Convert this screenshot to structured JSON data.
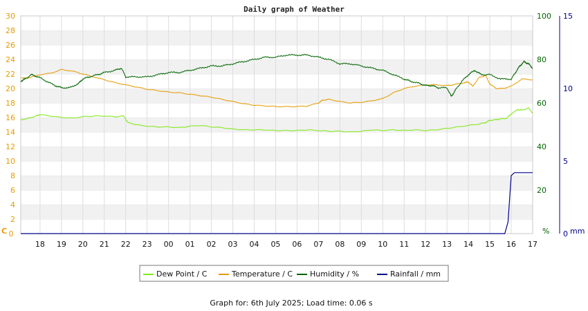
{
  "chart_data": {
    "type": "line",
    "title": "Daily graph of Weather",
    "footer": "Graph for: 6th July 2025; Load time: 0.06 s",
    "x_ticks": [
      "18",
      "19",
      "20",
      "21",
      "22",
      "23",
      "00",
      "01",
      "02",
      "03",
      "04",
      "05",
      "06",
      "07",
      "08",
      "09",
      "10",
      "11",
      "12",
      "13",
      "14",
      "15",
      "16",
      "17"
    ],
    "x_hour_range": [
      17.1,
      41.0
    ],
    "axes": {
      "left": {
        "unit": "C",
        "min": 0,
        "max": 30,
        "step": 2,
        "color": "#e69b00"
      },
      "right1": {
        "unit": "%",
        "min": 0,
        "max": 100,
        "step": 20,
        "color": "#006400"
      },
      "right2": {
        "unit": "mm",
        "min": 0,
        "max": 15,
        "step": 5,
        "color": "#00008b"
      }
    },
    "grid": true,
    "legend_position": "bottom",
    "series": [
      {
        "name": "Dew Point / C",
        "axis": "left",
        "color": "#7fe817",
        "x": [
          17.1,
          17.5,
          17.8,
          18.0,
          18.5,
          19.0,
          19.5,
          20.0,
          20.5,
          21.0,
          21.5,
          21.9,
          22.1,
          22.5,
          23.0,
          23.5,
          24.0,
          24.5,
          25.0,
          25.5,
          26.0,
          26.5,
          27.0,
          27.5,
          28.0,
          28.5,
          29.0,
          29.5,
          30.0,
          30.5,
          31.0,
          31.5,
          32.0,
          32.5,
          33.0,
          33.5,
          34.0,
          34.5,
          35.0,
          35.5,
          36.0,
          36.5,
          37.0,
          37.5,
          38.0,
          38.5,
          38.8,
          39.0,
          39.3,
          39.5,
          39.8,
          40.0,
          40.3,
          40.5,
          40.8,
          41.0
        ],
        "y": [
          15.7,
          15.9,
          16.2,
          16.4,
          16.2,
          16.0,
          15.9,
          16.1,
          16.2,
          16.2,
          16.1,
          16.2,
          15.3,
          15.0,
          14.8,
          14.7,
          14.7,
          14.6,
          14.8,
          14.9,
          14.7,
          14.6,
          14.4,
          14.3,
          14.3,
          14.3,
          14.2,
          14.2,
          14.2,
          14.3,
          14.2,
          14.1,
          14.1,
          14.0,
          14.1,
          14.3,
          14.2,
          14.3,
          14.2,
          14.3,
          14.2,
          14.3,
          14.5,
          14.7,
          14.9,
          15.1,
          15.3,
          15.6,
          15.7,
          15.8,
          15.9,
          16.5,
          17.1,
          17.0,
          17.3,
          16.6
        ]
      },
      {
        "name": "Temperature / C",
        "axis": "left",
        "color": "#e69b00",
        "x": [
          17.1,
          17.5,
          18.0,
          18.5,
          19.0,
          19.5,
          20.0,
          20.5,
          21.0,
          21.5,
          22.0,
          22.5,
          23.0,
          23.5,
          24.0,
          24.5,
          25.0,
          25.5,
          26.0,
          26.5,
          27.0,
          27.5,
          28.0,
          28.5,
          29.0,
          29.5,
          30.0,
          30.5,
          31.0,
          31.2,
          31.5,
          32.0,
          32.5,
          33.0,
          33.5,
          34.0,
          34.5,
          35.0,
          35.5,
          36.0,
          36.5,
          37.0,
          37.3,
          37.8,
          38.0,
          38.2,
          38.5,
          38.8,
          39.0,
          39.3,
          39.6,
          40.0,
          40.5,
          41.0
        ],
        "y": [
          21.4,
          21.5,
          21.9,
          22.1,
          22.6,
          22.4,
          22.0,
          21.6,
          21.2,
          20.8,
          20.5,
          20.2,
          19.9,
          19.7,
          19.5,
          19.4,
          19.2,
          19.0,
          18.8,
          18.5,
          18.2,
          17.9,
          17.7,
          17.6,
          17.5,
          17.5,
          17.5,
          17.6,
          18.0,
          18.4,
          18.5,
          18.2,
          18.0,
          18.1,
          18.3,
          18.6,
          19.4,
          20.0,
          20.3,
          20.5,
          20.5,
          20.4,
          20.5,
          20.8,
          20.9,
          20.3,
          21.5,
          21.8,
          20.6,
          20.0,
          20.0,
          20.3,
          21.3,
          21.2
        ]
      },
      {
        "name": "Humidity / %",
        "axis": "right1",
        "color": "#006400",
        "x": [
          17.1,
          17.3,
          17.6,
          17.9,
          18.3,
          18.7,
          19.0,
          19.4,
          19.8,
          20.0,
          20.3,
          20.7,
          21.0,
          21.5,
          21.8,
          22.0,
          22.5,
          23.0,
          23.5,
          24.0,
          24.5,
          25.0,
          25.5,
          26.0,
          26.5,
          27.0,
          27.5,
          28.0,
          28.5,
          29.0,
          29.5,
          30.0,
          30.5,
          31.0,
          31.5,
          32.0,
          32.5,
          33.0,
          33.5,
          34.0,
          34.5,
          35.0,
          35.3,
          35.7,
          36.0,
          36.3,
          36.6,
          37.0,
          37.2,
          37.4,
          37.7,
          38.0,
          38.3,
          38.6,
          39.0,
          39.5,
          40.0,
          40.2,
          40.4,
          40.6,
          40.8,
          41.0
        ],
        "y": [
          70,
          71,
          73,
          72,
          70,
          68,
          67,
          67,
          69,
          71,
          72,
          73,
          74,
          75,
          76,
          72,
          72,
          72,
          73,
          74,
          74,
          75,
          76,
          77,
          77,
          78,
          79,
          80,
          81,
          81,
          82,
          82,
          82,
          81,
          80,
          78,
          78,
          77,
          76,
          75,
          73,
          71,
          70,
          69,
          68,
          68,
          67,
          67,
          63,
          66,
          70,
          73,
          75,
          73,
          73,
          71,
          71,
          74,
          77,
          79,
          78,
          76
        ]
      },
      {
        "name": "Rainfall / mm",
        "axis": "right2",
        "color": "#00008b",
        "x": [
          17.1,
          39.7,
          39.85,
          40.0,
          40.15,
          41.0
        ],
        "y": [
          0,
          0,
          0.8,
          4.0,
          4.2,
          4.2
        ]
      }
    ]
  }
}
